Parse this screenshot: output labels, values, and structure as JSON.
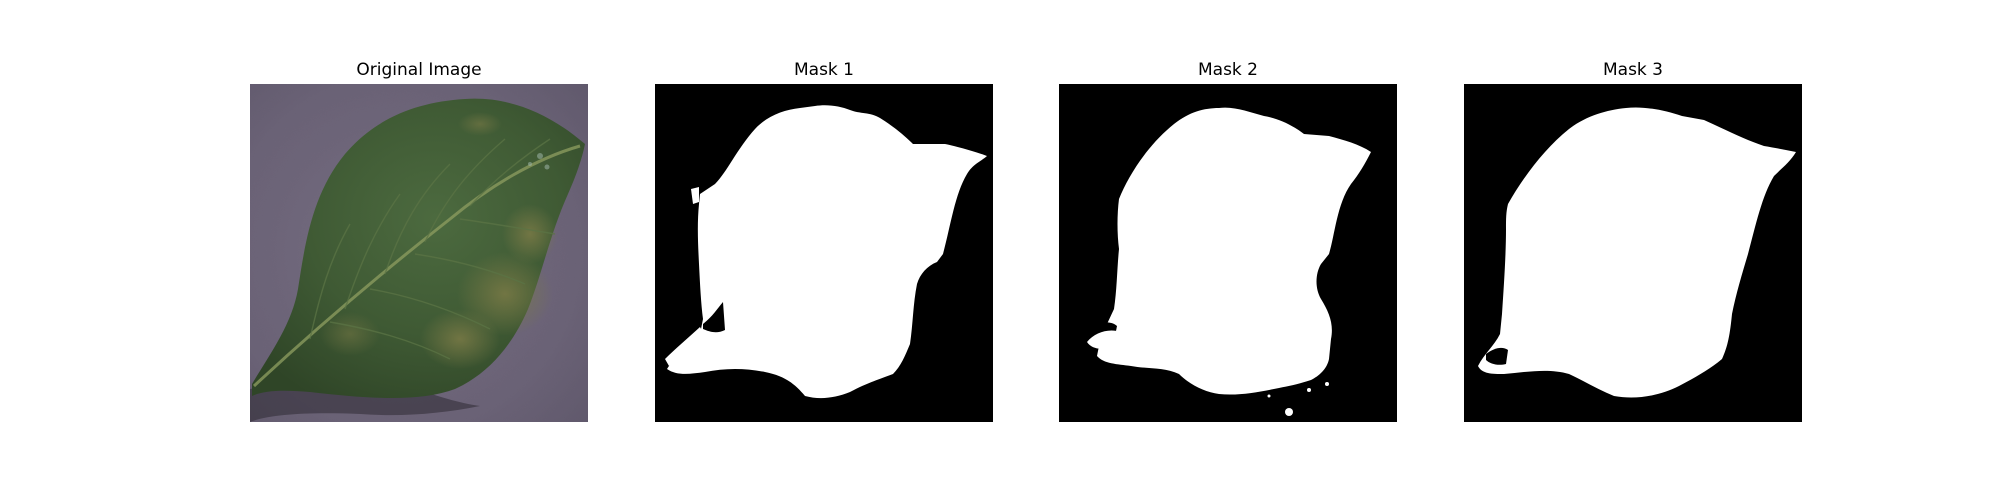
{
  "figure": {
    "panels": [
      {
        "title": "Original Image",
        "image": "leaf-photo"
      },
      {
        "title": "Mask 1",
        "image": "segmentation-mask"
      },
      {
        "title": "Mask 2",
        "image": "segmentation-mask"
      },
      {
        "title": "Mask 3",
        "image": "segmentation-mask"
      }
    ]
  },
  "colors": {
    "background": "#ffffff",
    "mask_foreground": "#ffffff",
    "mask_background": "#000000",
    "leaf": "#3f5a34",
    "surface": "#6d6478"
  }
}
